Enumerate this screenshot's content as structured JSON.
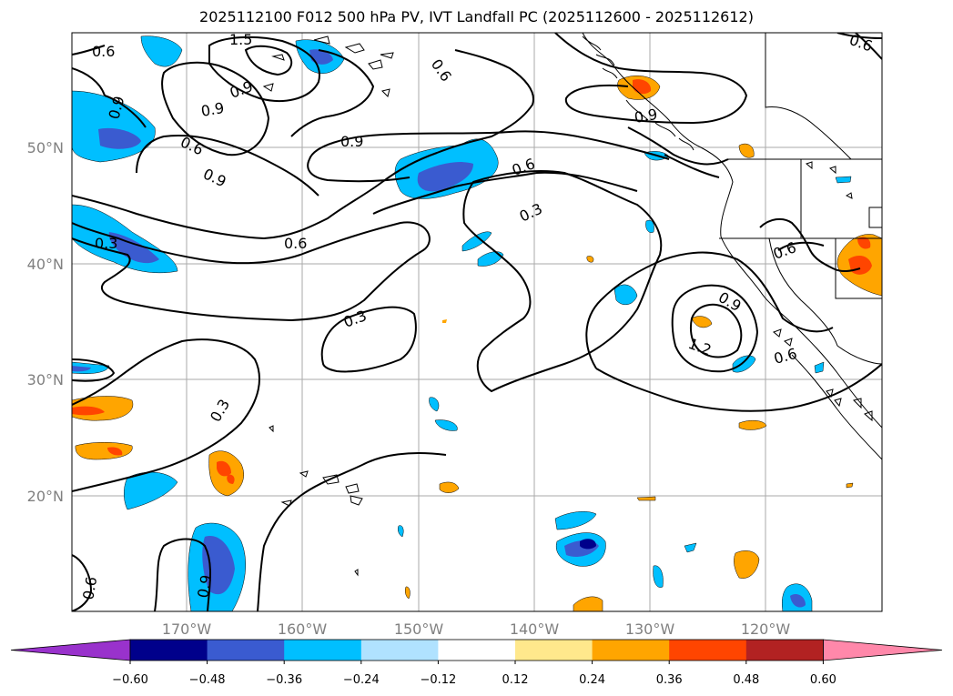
{
  "title": "2025112100 F012 500 hPa PV, IVT Landfall PC (2025112600 - 2025112612)",
  "lat_ticks": [
    "50°N",
    "40°N",
    "30°N",
    "20°N"
  ],
  "lon_ticks": [
    "170°W",
    "160°W",
    "150°W",
    "140°W",
    "130°W",
    "120°W"
  ],
  "colorbar": {
    "ticks": [
      "−0.60",
      "−0.48",
      "−0.36",
      "−0.24",
      "−0.12",
      "0.12",
      "0.24",
      "0.36",
      "0.48",
      "0.60"
    ],
    "colors": [
      "#9932cc",
      "#00008b",
      "#3a5bd0",
      "#00bfff",
      "#b0e2ff",
      "#ffffff",
      "#ffe88c",
      "#ffa500",
      "#ff4500",
      "#b22222",
      "#ff88aa"
    ]
  },
  "contour_labels": {
    "c1": "1.5",
    "c2": "0.6",
    "c3": "0.9",
    "c4": "0.9",
    "c5": "0.6",
    "c6": "0.9",
    "c7": "0.9",
    "c8": "0.6",
    "c9": "0.3",
    "c10": "0.6",
    "c11": "0.3",
    "c12": "0.3",
    "c13": "0.3",
    "c14": "0.9",
    "c15": "0.6",
    "c16": "0.9",
    "c17": "1.2",
    "c18": "0.6",
    "c19": "0.6",
    "c20": "0.9",
    "c21": "0.6"
  }
}
